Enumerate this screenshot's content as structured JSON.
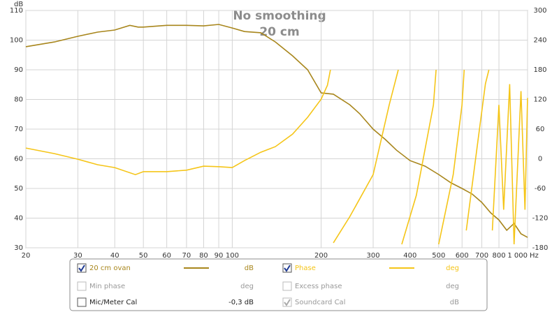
{
  "chart_data": {
    "type": "line",
    "title": "No smoothing",
    "subtitle": "20 cm",
    "x_unit": "Hz",
    "y_label": "dB",
    "log_x": true,
    "grid": true,
    "xlim": [
      20,
      1000
    ],
    "xticks": [
      20,
      30,
      40,
      50,
      60,
      70,
      80,
      90,
      100,
      200,
      300,
      400,
      500,
      600,
      700,
      800,
      {
        "value": 1000,
        "label": "1 000"
      }
    ],
    "ylim": [
      30,
      110
    ],
    "yticks": [
      30,
      40,
      50,
      60,
      70,
      80,
      90,
      100,
      110
    ],
    "y2lim": [
      -180,
      300
    ],
    "y2ticks": [
      -180,
      -120,
      -60,
      0,
      60,
      120,
      180,
      240,
      300
    ],
    "series": [
      {
        "name": "20 cm ovan",
        "unit": "dB",
        "color": "#a8861c",
        "checked": true,
        "x": [
          20,
          25,
          30,
          35,
          40,
          45,
          48,
          50,
          60,
          70,
          80,
          90,
          100,
          110,
          125,
          140,
          160,
          180,
          200,
          220,
          250,
          270,
          300,
          330,
          360,
          400,
          450,
          500,
          550,
          600,
          650,
          700,
          750,
          800,
          850,
          900,
          950,
          1000
        ],
        "values": [
          97.8,
          99.4,
          101.3,
          102.7,
          103.4,
          105,
          104.4,
          104.4,
          105,
          105,
          104.8,
          105.3,
          104.1,
          102.9,
          102.5,
          99.4,
          94.7,
          90,
          82.2,
          81.8,
          78.2,
          75.2,
          70,
          66.5,
          62.9,
          59.4,
          57.5,
          54.7,
          51.9,
          50,
          48.1,
          45.3,
          41.8,
          39.4,
          35.9,
          38.2,
          34.7,
          33.5
        ]
      },
      {
        "name": "Phase",
        "unit": "deg",
        "color": "#f5c518",
        "axis": "y2",
        "checked": true,
        "x": [
          20,
          25,
          30,
          35,
          40,
          47,
          50,
          60,
          70,
          80,
          90,
          100,
          110,
          125,
          140,
          160,
          180,
          200,
          210,
          215,
          217,
          220,
          250,
          300,
          340,
          365,
          370,
          375,
          420,
          480,
          490,
          495,
          500,
          560,
          600,
          610,
          615,
          620,
          680,
          720,
          740,
          750,
          760,
          800,
          830,
          870,
          900,
          950,
          980,
          1000
        ],
        "values": [
          21.8,
          10.5,
          -0.8,
          -12,
          -17.8,
          -32,
          -26,
          -26,
          -23,
          -15,
          -16,
          -17.8,
          -3.7,
          13.3,
          24.6,
          50,
          84,
          120.6,
          148.8,
          180,
          null,
          -170,
          -117,
          -32,
          109,
          180,
          null,
          -173,
          -74,
          109,
          180,
          null,
          -173,
          -32,
          109,
          180,
          null,
          -145,
          38.7,
          151.7,
          180,
          null,
          -145,
          109,
          -103,
          151,
          -173,
          137,
          -103,
          123
        ]
      }
    ],
    "extra_rows": [
      {
        "name": "Min phase",
        "unit": "deg",
        "checked": false,
        "enabled": false
      },
      {
        "name": "Excess phase",
        "unit": "deg",
        "checked": false,
        "enabled": false
      },
      {
        "name": "Mic/Meter Cal",
        "unit": "-0,3 dB",
        "checked": false,
        "enabled": true
      },
      {
        "name": "Soundcard Cal",
        "unit": "dB",
        "checked": true,
        "enabled": false
      }
    ]
  }
}
